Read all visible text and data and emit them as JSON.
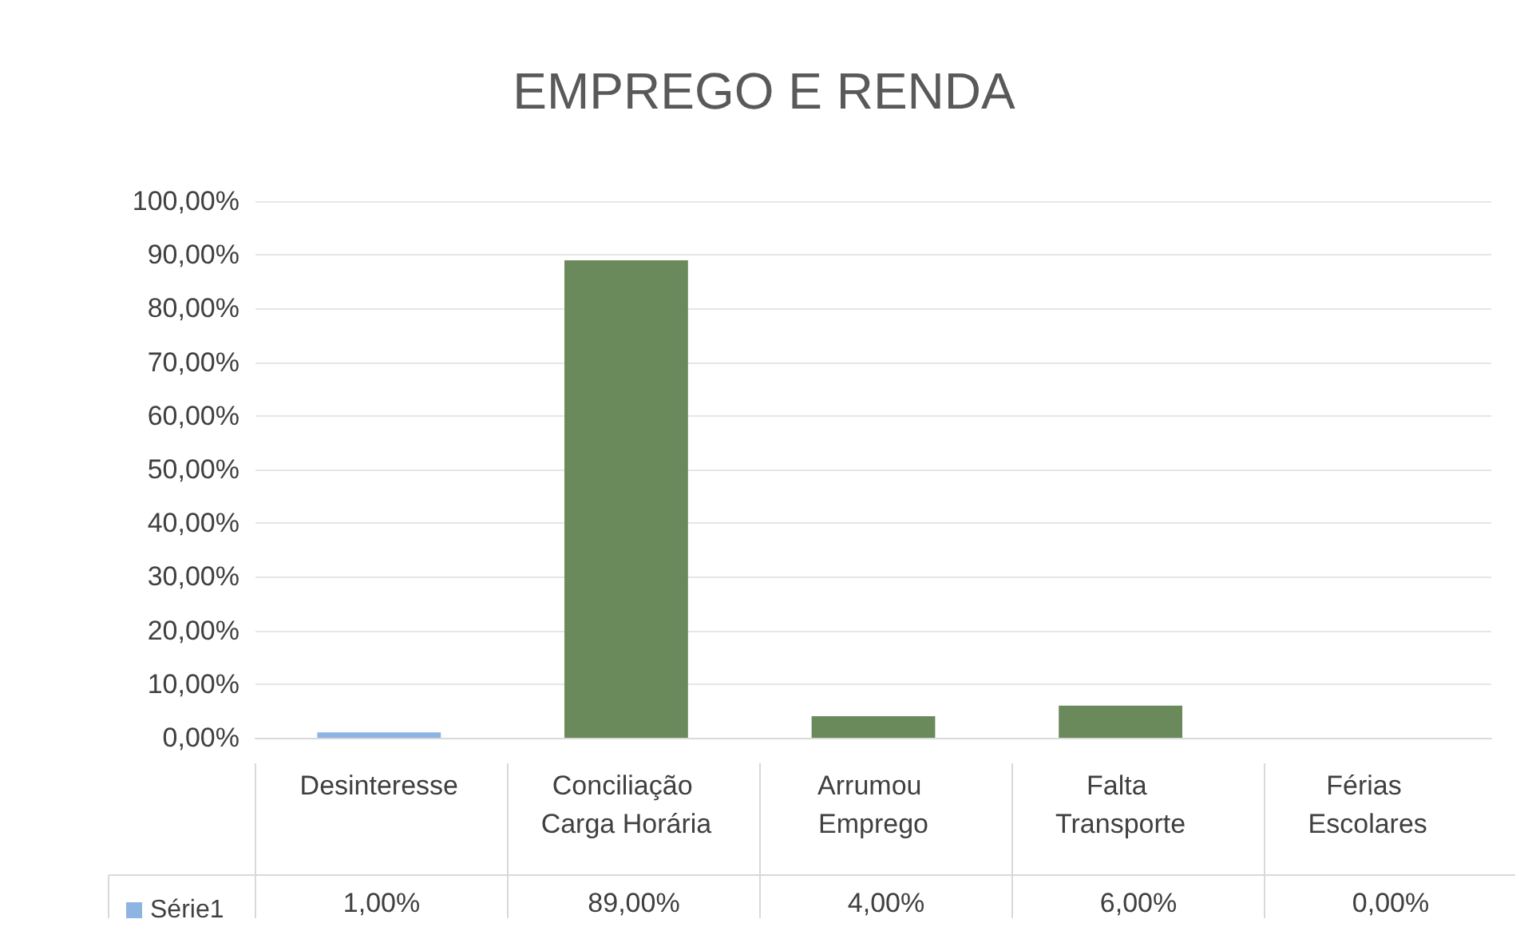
{
  "chart_data": {
    "type": "bar",
    "title": "EMPREGO E RENDA",
    "categories": [
      "Desinteresse",
      "Conciliação Carga Horária",
      "Arrumou Emprego",
      "Falta Transporte",
      "Férias Escolares"
    ],
    "series": [
      {
        "name": "Série1",
        "color": "#8db4e2",
        "colors": [
          "#8db4e2",
          "#6b8a5c",
          "#6b8a5c",
          "#6b8a5c",
          "#6b8a5c"
        ],
        "values": [
          1,
          89,
          4,
          6,
          0
        ],
        "value_labels": [
          "1,00%",
          "89,00%",
          "4,00%",
          "6,00%",
          "0,00%"
        ]
      }
    ],
    "ylim": [
      0,
      100
    ],
    "yticks": [
      {
        "value": 0,
        "label": "0,00%"
      },
      {
        "value": 10,
        "label": "10,00%"
      },
      {
        "value": 20,
        "label": "20,00%"
      },
      {
        "value": 30,
        "label": "30,00%"
      },
      {
        "value": 40,
        "label": "40,00%"
      },
      {
        "value": 50,
        "label": "50,00%"
      },
      {
        "value": 60,
        "label": "60,00%"
      },
      {
        "value": 70,
        "label": "70,00%"
      },
      {
        "value": 80,
        "label": "80,00%"
      },
      {
        "value": 90,
        "label": "90,00%"
      },
      {
        "value": 100,
        "label": "100,00%"
      }
    ],
    "grid": "y",
    "legend": "bottom left"
  }
}
